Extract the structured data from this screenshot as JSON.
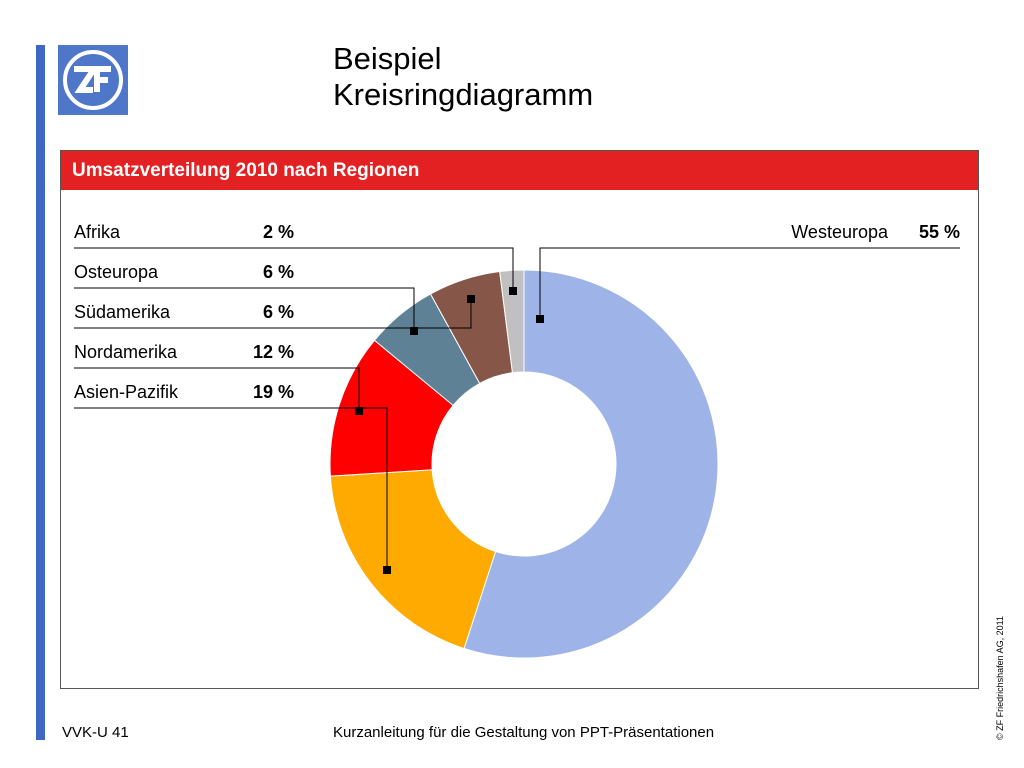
{
  "slide": {
    "title_line1": "Beispiel",
    "title_line2": "Kreisringdiagramm",
    "footer_left": "VVK-U 41",
    "footer_center": "Kurzanleitung für die Gestaltung von PPT-Präsentationen",
    "copyright": "© ZF Friedrichshafen AG, 2011",
    "logo_text": "ZF"
  },
  "colors": {
    "accent_bar": "#3F68C3",
    "logo_blue": "#4E77C9",
    "header_red": "#E32122",
    "leader": "#000000"
  },
  "chart_data": {
    "type": "pie",
    "variant": "donut",
    "title": "Umsatzverteilung 2010 nach Regionen",
    "value_suffix": "%",
    "slices": [
      {
        "label": "Westeuropa",
        "value": 55,
        "display": "55 %",
        "color": "#9EB4E8"
      },
      {
        "label": "Asien-Pazifik",
        "value": 19,
        "display": "19 %",
        "color": "#FFAA00"
      },
      {
        "label": "Nordamerika",
        "value": 12,
        "display": "12 %",
        "color": "#FF0000"
      },
      {
        "label": "Osteuropa",
        "value": 6,
        "display": "6 %",
        "color": "#5F8196"
      },
      {
        "label": "Südamerika",
        "value": 6,
        "display": "6 %",
        "color": "#865748"
      },
      {
        "label": "Afrika",
        "value": 2,
        "display": "2 %",
        "color": "#C0C0C0"
      }
    ]
  }
}
